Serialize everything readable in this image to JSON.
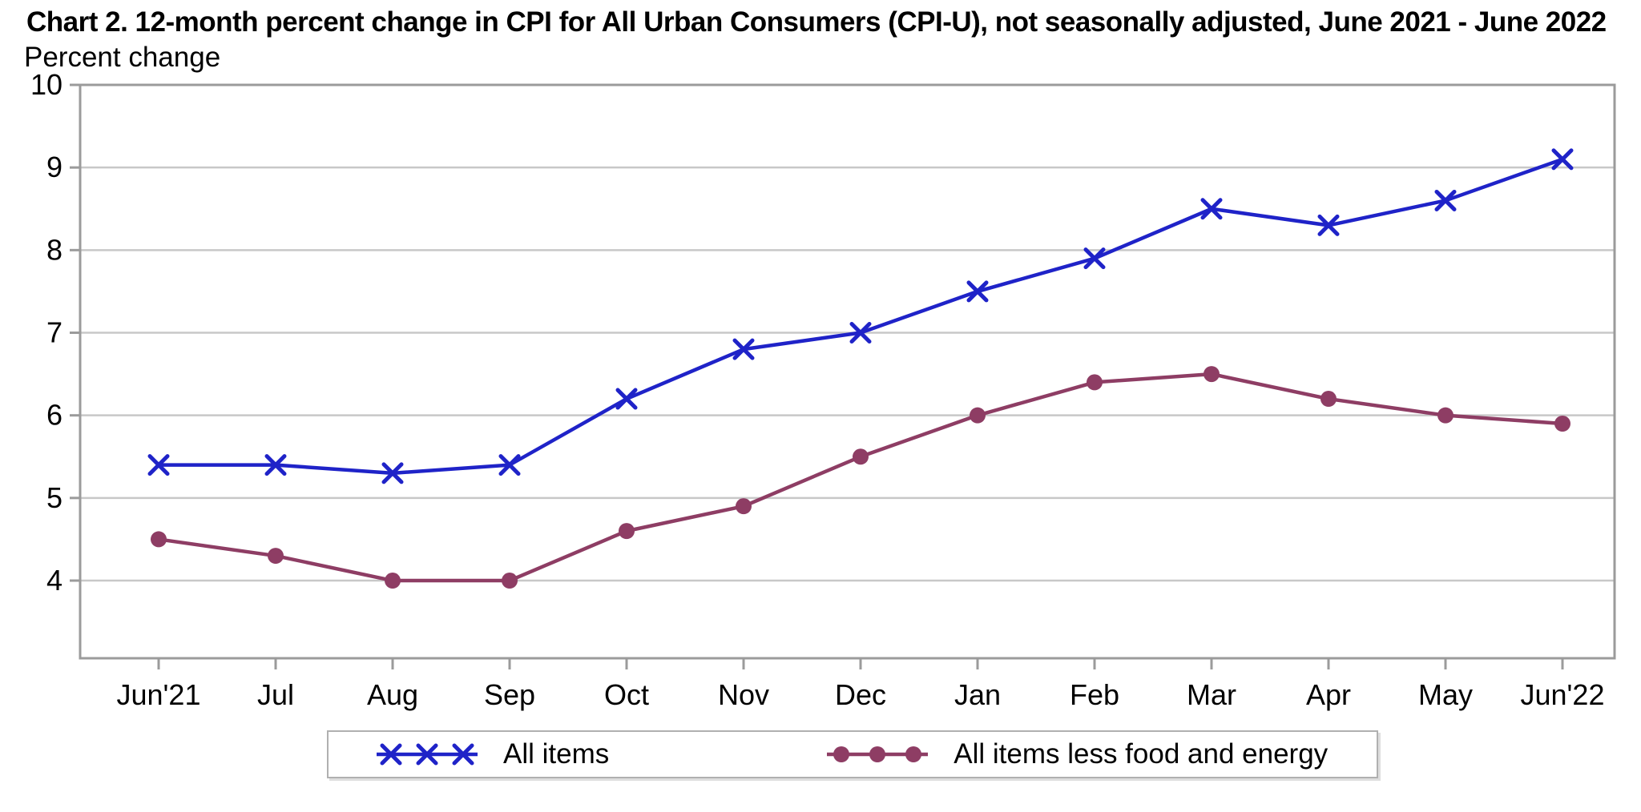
{
  "title": "Chart 2. 12-month percent change in CPI for All Urban Consumers (CPI-U), not seasonally adjusted, June 2021 - June 2022",
  "axis_note": "Percent change",
  "chart_data": {
    "type": "line",
    "categories": [
      "Jun'21",
      "Jul",
      "Aug",
      "Sep",
      "Oct",
      "Nov",
      "Dec",
      "Jan",
      "Feb",
      "Mar",
      "Apr",
      "May",
      "Jun'22"
    ],
    "series": [
      {
        "name": "All items",
        "marker": "x",
        "color": "#1f23c8",
        "values": [
          5.4,
          5.4,
          5.3,
          5.4,
          6.2,
          6.8,
          7.0,
          7.5,
          7.9,
          8.5,
          8.3,
          8.6,
          9.1
        ]
      },
      {
        "name": "All items less food and energy",
        "marker": "circle",
        "color": "#8e3d64",
        "values": [
          4.5,
          4.3,
          4.0,
          4.0,
          4.6,
          4.9,
          5.5,
          6.0,
          6.4,
          6.5,
          6.2,
          6.0,
          5.9
        ]
      }
    ],
    "title": "Chart 2. 12-month percent change in CPI for All Urban Consumers (CPI-U), not seasonally adjusted, June 2021 - June 2022",
    "xlabel": "",
    "ylabel": "Percent change",
    "ylim": [
      3.06,
      10
    ],
    "yticks": [
      4,
      5,
      6,
      7,
      8,
      9,
      10
    ],
    "grid": true,
    "legend_position": "bottom"
  },
  "colors": {
    "frame": "#9b9b9b",
    "grid": "#c8c8c8",
    "text": "#000000",
    "background": "#ffffff"
  },
  "legend": {
    "entries": [
      {
        "label": "All items"
      },
      {
        "label": "All items less food and energy"
      }
    ]
  }
}
